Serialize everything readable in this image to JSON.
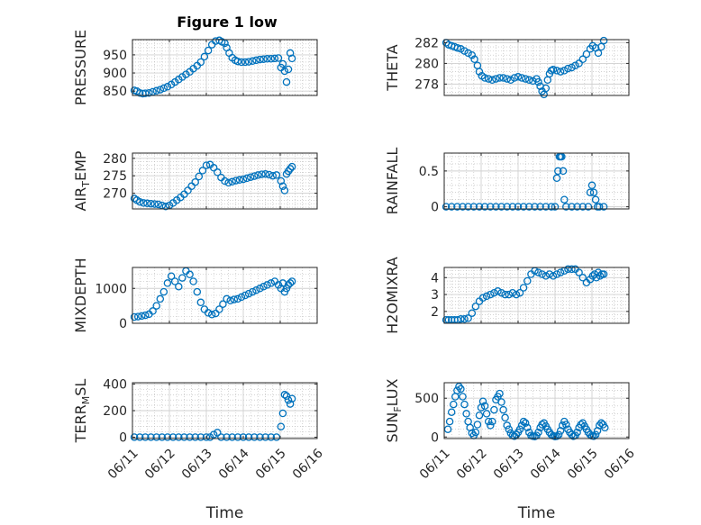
{
  "figure": {
    "title": "Figure 1 low"
  },
  "colors": {
    "marker": "#0072BD",
    "axis": "#262626",
    "grid": "#d0d0d0",
    "minor_grid": "#b8b8b8"
  },
  "chart_data": [
    {
      "type": "scatter",
      "ylabel": "PRESSURE",
      "ylabel_sub": "",
      "ylabel_post": "",
      "xlabel": "",
      "xlim": [
        0,
        5
      ],
      "ylim": [
        838,
        992
      ],
      "yticks": [
        850,
        900,
        950
      ],
      "xticks": [
        0,
        1,
        2,
        3,
        4,
        5
      ],
      "xticklabels": [
        "06/11",
        "06/12",
        "06/13",
        "06/14",
        "06/15",
        "06/16"
      ],
      "show_xticklabels": false,
      "grid": true,
      "minor_grid": true,
      "legend": "none",
      "x": [
        0.05,
        0.12,
        0.2,
        0.28,
        0.35,
        0.45,
        0.55,
        0.65,
        0.75,
        0.85,
        0.95,
        1.05,
        1.15,
        1.25,
        1.35,
        1.45,
        1.55,
        1.65,
        1.75,
        1.85,
        1.95,
        2.05,
        2.15,
        2.25,
        2.35,
        2.42,
        2.5,
        2.55,
        2.62,
        2.7,
        2.78,
        2.85,
        2.95,
        3.05,
        3.15,
        3.25,
        3.35,
        3.45,
        3.55,
        3.65,
        3.75,
        3.85,
        3.95,
        4.02,
        4.07,
        4.12,
        4.17,
        4.22,
        4.27,
        4.32
      ],
      "y": [
        852,
        850,
        845,
        843,
        844,
        845,
        848,
        851,
        854,
        858,
        862,
        868,
        875,
        882,
        889,
        896,
        903,
        912,
        920,
        930,
        945,
        962,
        978,
        988,
        990,
        986,
        982,
        970,
        955,
        942,
        935,
        932,
        930,
        930,
        931,
        933,
        935,
        937,
        938,
        939,
        939,
        940,
        941,
        915,
        925,
        905,
        875,
        910,
        955,
        940
      ]
    },
    {
      "type": "scatter",
      "ylabel": "THETA",
      "ylabel_sub": "",
      "ylabel_post": "",
      "xlabel": "",
      "xlim": [
        0,
        5
      ],
      "ylim": [
        276.9,
        282.3
      ],
      "yticks": [
        278,
        280,
        282
      ],
      "xticks": [
        0,
        1,
        2,
        3,
        4,
        5
      ],
      "xticklabels": [
        "06/11",
        "06/12",
        "06/13",
        "06/14",
        "06/15",
        "06/16"
      ],
      "show_xticklabels": false,
      "grid": true,
      "minor_grid": true,
      "legend": "none",
      "x": [
        0.05,
        0.12,
        0.2,
        0.28,
        0.36,
        0.45,
        0.55,
        0.65,
        0.75,
        0.82,
        0.9,
        0.95,
        1.02,
        1.1,
        1.2,
        1.3,
        1.4,
        1.5,
        1.6,
        1.7,
        1.8,
        1.9,
        2.0,
        2.1,
        2.2,
        2.3,
        2.4,
        2.5,
        2.55,
        2.6,
        2.65,
        2.7,
        2.75,
        2.8,
        2.85,
        2.9,
        2.95,
        3.05,
        3.15,
        3.25,
        3.35,
        3.45,
        3.55,
        3.65,
        3.75,
        3.85,
        3.95,
        4.02,
        4.1,
        4.17,
        4.25,
        4.32
      ],
      "y": [
        282,
        281.8,
        281.7,
        281.6,
        281.5,
        281.4,
        281.2,
        281.0,
        280.8,
        280.4,
        279.8,
        279.2,
        278.8,
        278.6,
        278.5,
        278.4,
        278.5,
        278.6,
        278.6,
        278.5,
        278.4,
        278.6,
        278.7,
        278.6,
        278.5,
        278.4,
        278.3,
        278.5,
        278.2,
        277.8,
        277.3,
        277.0,
        277.6,
        278.4,
        279.0,
        279.3,
        279.4,
        279.3,
        279.2,
        279.3,
        279.5,
        279.6,
        279.8,
        280.0,
        280.4,
        280.9,
        281.4,
        281.7,
        281.5,
        281.0,
        281.6,
        282.2
      ]
    },
    {
      "type": "scatter",
      "ylabel": "AIR",
      "ylabel_sub": "T",
      "ylabel_post": "EMP",
      "xlabel": "",
      "xlim": [
        0,
        5
      ],
      "ylim": [
        265.5,
        281.5
      ],
      "yticks": [
        270,
        275,
        280
      ],
      "xticks": [
        0,
        1,
        2,
        3,
        4,
        5
      ],
      "xticklabels": [
        "06/11",
        "06/12",
        "06/13",
        "06/14",
        "06/15",
        "06/16"
      ],
      "show_xticklabels": false,
      "grid": true,
      "minor_grid": true,
      "legend": "none",
      "x": [
        0.05,
        0.12,
        0.2,
        0.3,
        0.4,
        0.5,
        0.6,
        0.7,
        0.8,
        0.9,
        1.0,
        1.1,
        1.2,
        1.3,
        1.4,
        1.5,
        1.6,
        1.7,
        1.8,
        1.9,
        2.0,
        2.1,
        2.2,
        2.3,
        2.4,
        2.5,
        2.6,
        2.7,
        2.8,
        2.9,
        3.0,
        3.1,
        3.2,
        3.3,
        3.4,
        3.5,
        3.6,
        3.7,
        3.8,
        3.9,
        4.02,
        4.07,
        4.12,
        4.17,
        4.22,
        4.27,
        4.32
      ],
      "y": [
        268.5,
        268,
        267.5,
        267.2,
        267.1,
        267,
        266.9,
        266.8,
        266.5,
        266.2,
        266.5,
        267.2,
        268,
        268.8,
        269.7,
        270.8,
        272,
        273.2,
        274.8,
        276.5,
        278,
        278.2,
        277.3,
        276,
        274.5,
        273.5,
        273,
        273.3,
        273.6,
        273.8,
        274,
        274.3,
        274.6,
        274.9,
        275.2,
        275.4,
        275.5,
        275.3,
        275,
        275.2,
        273.5,
        272,
        270.8,
        275.5,
        276.3,
        277,
        277.6
      ]
    },
    {
      "type": "scatter",
      "ylabel": "RAINFALL",
      "ylabel_sub": "",
      "ylabel_post": "",
      "xlabel": "",
      "xlim": [
        0,
        5
      ],
      "ylim": [
        -0.03,
        0.75
      ],
      "yticks": [
        0,
        0.5
      ],
      "xticks": [
        0,
        1,
        2,
        3,
        4,
        5
      ],
      "xticklabels": [
        "06/11",
        "06/12",
        "06/13",
        "06/14",
        "06/15",
        "06/16"
      ],
      "show_xticklabels": false,
      "grid": true,
      "minor_grid": true,
      "legend": "none",
      "x": [
        0.05,
        0.2,
        0.35,
        0.5,
        0.65,
        0.8,
        0.95,
        1.1,
        1.25,
        1.4,
        1.55,
        1.7,
        1.85,
        2.0,
        2.15,
        2.3,
        2.45,
        2.6,
        2.75,
        2.9,
        3.0,
        3.05,
        3.08,
        3.12,
        3.15,
        3.18,
        3.22,
        3.25,
        3.3,
        3.45,
        3.6,
        3.75,
        3.9,
        3.95,
        4.0,
        4.05,
        4.1,
        4.15,
        4.2,
        4.32
      ],
      "y": [
        0,
        0,
        0,
        0,
        0,
        0,
        0,
        0,
        0,
        0,
        0,
        0,
        0,
        0,
        0,
        0,
        0,
        0,
        0,
        0,
        0,
        0.4,
        0.5,
        0.7,
        0.7,
        0.7,
        0.5,
        0.1,
        0,
        0,
        0,
        0,
        0,
        0.2,
        0.3,
        0.2,
        0.1,
        0,
        0,
        0
      ]
    },
    {
      "type": "scatter",
      "ylabel": "MIXDEPTH",
      "ylabel_sub": "",
      "ylabel_post": "",
      "xlabel": "",
      "xlim": [
        0,
        5
      ],
      "ylim": [
        0,
        1600
      ],
      "yticks": [
        0,
        1000
      ],
      "xticks": [
        0,
        1,
        2,
        3,
        4,
        5
      ],
      "xticklabels": [
        "06/11",
        "06/12",
        "06/13",
        "06/14",
        "06/15",
        "06/16"
      ],
      "show_xticklabels": false,
      "grid": true,
      "minor_grid": true,
      "legend": "none",
      "x": [
        0.05,
        0.15,
        0.25,
        0.35,
        0.45,
        0.55,
        0.65,
        0.75,
        0.85,
        0.95,
        1.05,
        1.15,
        1.25,
        1.35,
        1.45,
        1.55,
        1.65,
        1.75,
        1.85,
        1.95,
        2.05,
        2.15,
        2.25,
        2.35,
        2.45,
        2.55,
        2.65,
        2.75,
        2.85,
        2.95,
        3.05,
        3.15,
        3.25,
        3.35,
        3.45,
        3.55,
        3.65,
        3.75,
        3.85,
        3.95,
        4.02,
        4.07,
        4.12,
        4.17,
        4.22,
        4.27,
        4.32
      ],
      "y": [
        180,
        190,
        210,
        230,
        260,
        350,
        500,
        700,
        900,
        1150,
        1350,
        1200,
        1050,
        1300,
        1500,
        1400,
        1200,
        900,
        600,
        400,
        300,
        250,
        280,
        400,
        550,
        700,
        650,
        680,
        700,
        750,
        800,
        850,
        900,
        950,
        1000,
        1050,
        1100,
        1150,
        1200,
        1100,
        1000,
        1150,
        900,
        1000,
        1100,
        1150,
        1200
      ]
    },
    {
      "type": "scatter",
      "ylabel": "H2OMIXRA",
      "ylabel_sub": "",
      "ylabel_post": "",
      "xlabel": "",
      "xlim": [
        0,
        5
      ],
      "ylim": [
        1.3,
        4.6
      ],
      "yticks": [
        2,
        3,
        4
      ],
      "xticks": [
        0,
        1,
        2,
        3,
        4,
        5
      ],
      "xticklabels": [
        "06/11",
        "06/12",
        "06/13",
        "06/14",
        "06/15",
        "06/16"
      ],
      "show_xticklabels": false,
      "grid": true,
      "minor_grid": true,
      "legend": "none",
      "x": [
        0.05,
        0.12,
        0.2,
        0.28,
        0.36,
        0.45,
        0.55,
        0.65,
        0.75,
        0.85,
        0.95,
        1.05,
        1.15,
        1.25,
        1.35,
        1.45,
        1.55,
        1.65,
        1.75,
        1.85,
        1.95,
        2.05,
        2.15,
        2.25,
        2.35,
        2.45,
        2.55,
        2.65,
        2.75,
        2.85,
        2.95,
        3.05,
        3.15,
        3.25,
        3.35,
        3.45,
        3.55,
        3.65,
        3.75,
        3.85,
        3.95,
        4.02,
        4.07,
        4.12,
        4.17,
        4.22,
        4.27,
        4.32
      ],
      "y": [
        1.5,
        1.5,
        1.5,
        1.5,
        1.5,
        1.55,
        1.55,
        1.6,
        1.9,
        2.3,
        2.6,
        2.8,
        2.9,
        3.0,
        3.1,
        3.2,
        3.1,
        3.0,
        3.0,
        3.1,
        3.0,
        3.1,
        3.4,
        3.8,
        4.2,
        4.4,
        4.3,
        4.2,
        4.1,
        4.2,
        4.1,
        4.2,
        4.3,
        4.4,
        4.5,
        4.5,
        4.5,
        4.3,
        4.0,
        3.7,
        3.9,
        4.1,
        4.2,
        4.0,
        4.3,
        4.1,
        4.2,
        4.2
      ]
    },
    {
      "type": "scatter",
      "ylabel": "TERR",
      "ylabel_sub": "M",
      "ylabel_post": "SL",
      "xlabel": "Time",
      "xlim": [
        0,
        5
      ],
      "ylim": [
        -10,
        410
      ],
      "yticks": [
        0,
        200,
        400
      ],
      "xticks": [
        0,
        1,
        2,
        3,
        4,
        5
      ],
      "xticklabels": [
        "06/11",
        "06/12",
        "06/13",
        "06/14",
        "06/15",
        "06/16"
      ],
      "show_xticklabels": true,
      "grid": true,
      "minor_grid": true,
      "legend": "none",
      "x": [
        0.05,
        0.2,
        0.35,
        0.5,
        0.65,
        0.8,
        0.95,
        1.1,
        1.25,
        1.4,
        1.55,
        1.7,
        1.85,
        2.0,
        2.1,
        2.2,
        2.3,
        2.4,
        2.55,
        2.7,
        2.85,
        3.0,
        3.15,
        3.3,
        3.45,
        3.6,
        3.75,
        3.9,
        4.02,
        4.07,
        4.12,
        4.17,
        4.22,
        4.27,
        4.32
      ],
      "y": [
        0,
        0,
        0,
        0,
        0,
        0,
        0,
        0,
        0,
        0,
        0,
        0,
        0,
        0,
        0,
        20,
        35,
        0,
        0,
        0,
        0,
        0,
        0,
        0,
        0,
        0,
        0,
        0,
        80,
        180,
        320,
        310,
        280,
        250,
        290
      ]
    },
    {
      "type": "scatter",
      "ylabel": "SUN",
      "ylabel_sub": "F",
      "ylabel_post": "LUX",
      "xlabel": "Time",
      "xlim": [
        0,
        5
      ],
      "ylim": [
        -20,
        700
      ],
      "yticks": [
        0,
        500
      ],
      "xticks": [
        0,
        1,
        2,
        3,
        4,
        5
      ],
      "xticklabels": [
        "06/11",
        "06/12",
        "06/13",
        "06/14",
        "06/15",
        "06/16"
      ],
      "show_xticklabels": true,
      "grid": true,
      "minor_grid": true,
      "legend": "none",
      "x": [
        0.1,
        0.15,
        0.2,
        0.25,
        0.3,
        0.35,
        0.4,
        0.45,
        0.5,
        0.55,
        0.6,
        0.65,
        0.7,
        0.75,
        0.8,
        0.85,
        0.9,
        0.95,
        1.0,
        1.05,
        1.1,
        1.15,
        1.2,
        1.25,
        1.3,
        1.35,
        1.4,
        1.45,
        1.5,
        1.55,
        1.6,
        1.65,
        1.7,
        1.75,
        1.8,
        1.85,
        1.9,
        1.95,
        2.0,
        2.05,
        2.1,
        2.15,
        2.2,
        2.25,
        2.3,
        2.35,
        2.4,
        2.45,
        2.5,
        2.55,
        2.6,
        2.65,
        2.7,
        2.75,
        2.8,
        2.85,
        2.9,
        2.95,
        3.0,
        3.05,
        3.1,
        3.15,
        3.2,
        3.25,
        3.3,
        3.35,
        3.4,
        3.45,
        3.5,
        3.55,
        3.6,
        3.65,
        3.7,
        3.75,
        3.8,
        3.85,
        3.9,
        3.95,
        4.0,
        4.05,
        4.1,
        4.15,
        4.2,
        4.25,
        4.3,
        4.35
      ],
      "y": [
        100,
        200,
        320,
        420,
        520,
        600,
        650,
        620,
        520,
        420,
        300,
        200,
        120,
        50,
        20,
        60,
        160,
        280,
        380,
        460,
        400,
        300,
        200,
        150,
        200,
        350,
        480,
        520,
        560,
        450,
        350,
        250,
        150,
        100,
        50,
        20,
        10,
        30,
        60,
        100,
        150,
        200,
        180,
        120,
        60,
        20,
        10,
        5,
        20,
        60,
        120,
        160,
        180,
        140,
        100,
        60,
        30,
        15,
        5,
        10,
        30,
        80,
        150,
        200,
        160,
        100,
        60,
        30,
        10,
        20,
        60,
        120,
        160,
        180,
        140,
        100,
        60,
        30,
        15,
        10,
        30,
        80,
        150,
        180,
        160,
        120
      ]
    }
  ]
}
